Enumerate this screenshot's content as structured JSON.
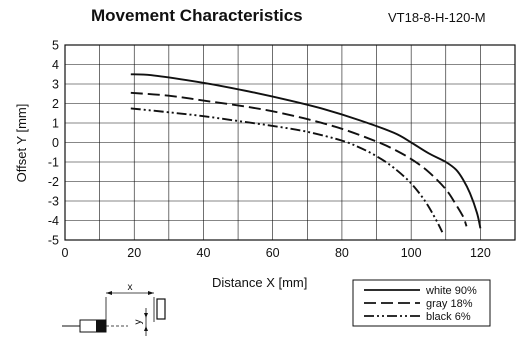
{
  "header": {
    "title": "Movement Characteristics",
    "model": "VT18-8-H-120-M"
  },
  "diagram": {
    "x_label": "x",
    "y_label": "y"
  },
  "chart_data": {
    "type": "line",
    "xlabel": "Distance X [mm]",
    "ylabel": "Offset Y [mm]",
    "xlim": [
      0,
      130
    ],
    "ylim": [
      -5,
      5
    ],
    "xticks": [
      0,
      20,
      40,
      60,
      80,
      100,
      120
    ],
    "yticks": [
      5,
      4,
      3,
      2,
      1,
      0,
      -1,
      -2,
      -3,
      -4,
      -5
    ],
    "grid": true,
    "legend_position": "bottom-right",
    "series": [
      {
        "name": "white 90%",
        "style": "solid",
        "x": [
          19,
          25,
          35,
          45,
          55,
          65,
          75,
          85,
          95,
          100,
          105,
          110,
          113,
          115,
          117,
          119,
          120
        ],
        "y": [
          3.5,
          3.45,
          3.2,
          2.9,
          2.55,
          2.15,
          1.7,
          1.15,
          0.5,
          0.0,
          -0.55,
          -1.0,
          -1.4,
          -1.9,
          -2.6,
          -3.6,
          -4.4
        ]
      },
      {
        "name": "gray 18%",
        "style": "dashed",
        "x": [
          19,
          30,
          40,
          50,
          60,
          70,
          80,
          90,
          95,
          100,
          105,
          110,
          113,
          115,
          116
        ],
        "y": [
          2.55,
          2.4,
          2.15,
          1.9,
          1.6,
          1.2,
          0.7,
          0.05,
          -0.35,
          -0.85,
          -1.5,
          -2.4,
          -3.2,
          -3.8,
          -4.3
        ]
      },
      {
        "name": "black 6%",
        "style": "dashdot",
        "x": [
          19,
          30,
          40,
          50,
          60,
          70,
          80,
          85,
          90,
          95,
          100,
          104,
          107,
          109
        ],
        "y": [
          1.75,
          1.55,
          1.35,
          1.1,
          0.85,
          0.55,
          0.1,
          -0.25,
          -0.7,
          -1.3,
          -2.1,
          -3.0,
          -3.9,
          -4.6
        ]
      }
    ]
  }
}
